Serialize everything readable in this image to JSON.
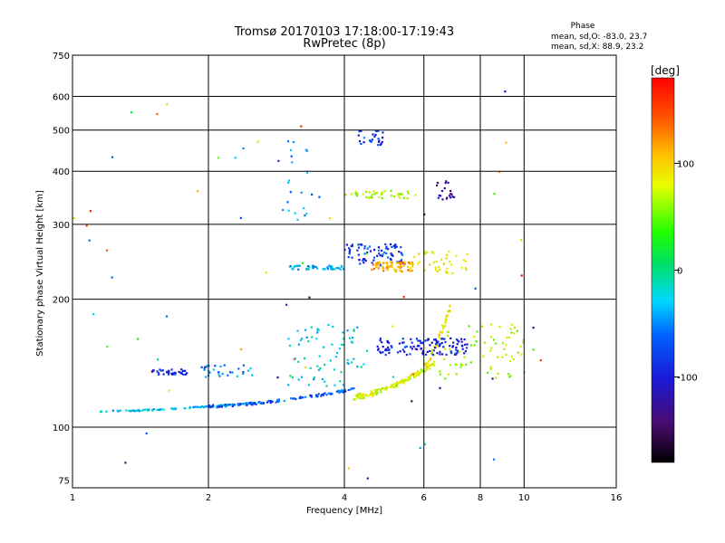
{
  "chart_data": {
    "type": "scatter",
    "title": "Tromsø 20170103 17:18:00-17:19:43",
    "subtitle": "RwPretec (8p)",
    "xlabel": "Frequency [MHz]",
    "ylabel": "Stationary phase Virtual Height [km]",
    "x_scale": "log",
    "y_scale": "log",
    "xlim": [
      1,
      16
    ],
    "ylim": [
      72,
      750
    ],
    "x_ticks": [
      1,
      2,
      4,
      6,
      8,
      10,
      16
    ],
    "x_tick_labels": [
      "1",
      "2",
      "4",
      "6",
      "8",
      "10",
      "16"
    ],
    "y_ticks": [
      75,
      100,
      200,
      300,
      400,
      500,
      600,
      750
    ],
    "y_tick_labels": [
      "75",
      "100",
      "200",
      "300",
      "400",
      "500",
      "600",
      "750"
    ],
    "grid": true,
    "phase_stats": {
      "heading": "Phase",
      "line_o": "mean, sd,O:  -83.0, 23.7",
      "line_x": "mean, sd,X:  88.9, 23.2"
    },
    "colorbar": {
      "label": "[deg]",
      "range": [
        -180,
        180
      ],
      "ticks": [
        100,
        0,
        -100
      ],
      "tick_labels": [
        "100",
        "0",
        "-100"
      ]
    },
    "point_groups": [
      {
        "name": "low-trace-cyan",
        "x_range": [
          1.15,
          2.5
        ],
        "y_range": [
          109,
          114
        ],
        "phase": -40,
        "count": 110
      },
      {
        "name": "low-trace-blue",
        "x_range": [
          2.0,
          4.2
        ],
        "y_range": [
          112,
          123
        ],
        "phase": -75,
        "count": 110
      },
      {
        "name": "low-trace-green",
        "x_range": [
          4.2,
          6.4
        ],
        "y_range": [
          118,
          142
        ],
        "phase": 75,
        "count": 120
      },
      {
        "name": "x-trace-yellow",
        "x_range": [
          6.0,
          6.9
        ],
        "y_range": [
          140,
          195
        ],
        "phase": 95,
        "count": 50
      },
      {
        "name": "cusp-blue-1",
        "x_range": [
          1.5,
          1.8
        ],
        "y_range": [
          133,
          137
        ],
        "phase": -95,
        "count": 35
      },
      {
        "name": "cusp-blue-2",
        "x_range": [
          1.9,
          2.5
        ],
        "y_range": [
          131,
          140
        ],
        "phase": -60,
        "count": 30
      },
      {
        "name": "mid-scatter",
        "x_range": [
          3.0,
          4.5
        ],
        "y_range": [
          125,
          175
        ],
        "phase": -30,
        "count": 70
      },
      {
        "name": "f-blue-blob",
        "x_range": [
          4.7,
          7.5
        ],
        "y_range": [
          148,
          162
        ],
        "phase": -95,
        "count": 120
      },
      {
        "name": "upper-scatter",
        "x_range": [
          6.5,
          10.5
        ],
        "y_range": [
          130,
          175
        ],
        "phase": 60,
        "count": 70
      },
      {
        "name": "f2-band-cyan",
        "x_range": [
          3.0,
          4.0
        ],
        "y_range": [
          235,
          240
        ],
        "phase": -45,
        "count": 50
      },
      {
        "name": "f2-band-blue",
        "x_range": [
          4.0,
          5.4
        ],
        "y_range": [
          240,
          270
        ],
        "phase": -85,
        "count": 80
      },
      {
        "name": "f2-band-orange",
        "x_range": [
          4.6,
          5.7
        ],
        "y_range": [
          232,
          245
        ],
        "phase": 120,
        "count": 70
      },
      {
        "name": "f2-band-x",
        "x_range": [
          5.6,
          7.5
        ],
        "y_range": [
          230,
          260
        ],
        "phase": 90,
        "count": 40
      },
      {
        "name": "high-band",
        "x_range": [
          4.0,
          5.8
        ],
        "y_range": [
          345,
          360
        ],
        "phase": 60,
        "count": 40
      },
      {
        "name": "high-blue",
        "x_range": [
          4.3,
          4.9
        ],
        "y_range": [
          460,
          500
        ],
        "phase": -90,
        "count": 25
      },
      {
        "name": "high-violet",
        "x_range": [
          6.4,
          7.0
        ],
        "y_range": [
          340,
          380
        ],
        "phase": -130,
        "count": 20
      },
      {
        "name": "sparse-high",
        "x_range": [
          2.9,
          3.6
        ],
        "y_range": [
          300,
          480
        ],
        "phase": -55,
        "count": 22
      },
      {
        "name": "scattered",
        "x_range": [
          1.0,
          12.0
        ],
        "y_range": [
          75,
          620
        ],
        "phase": 0,
        "count": 60
      }
    ]
  }
}
